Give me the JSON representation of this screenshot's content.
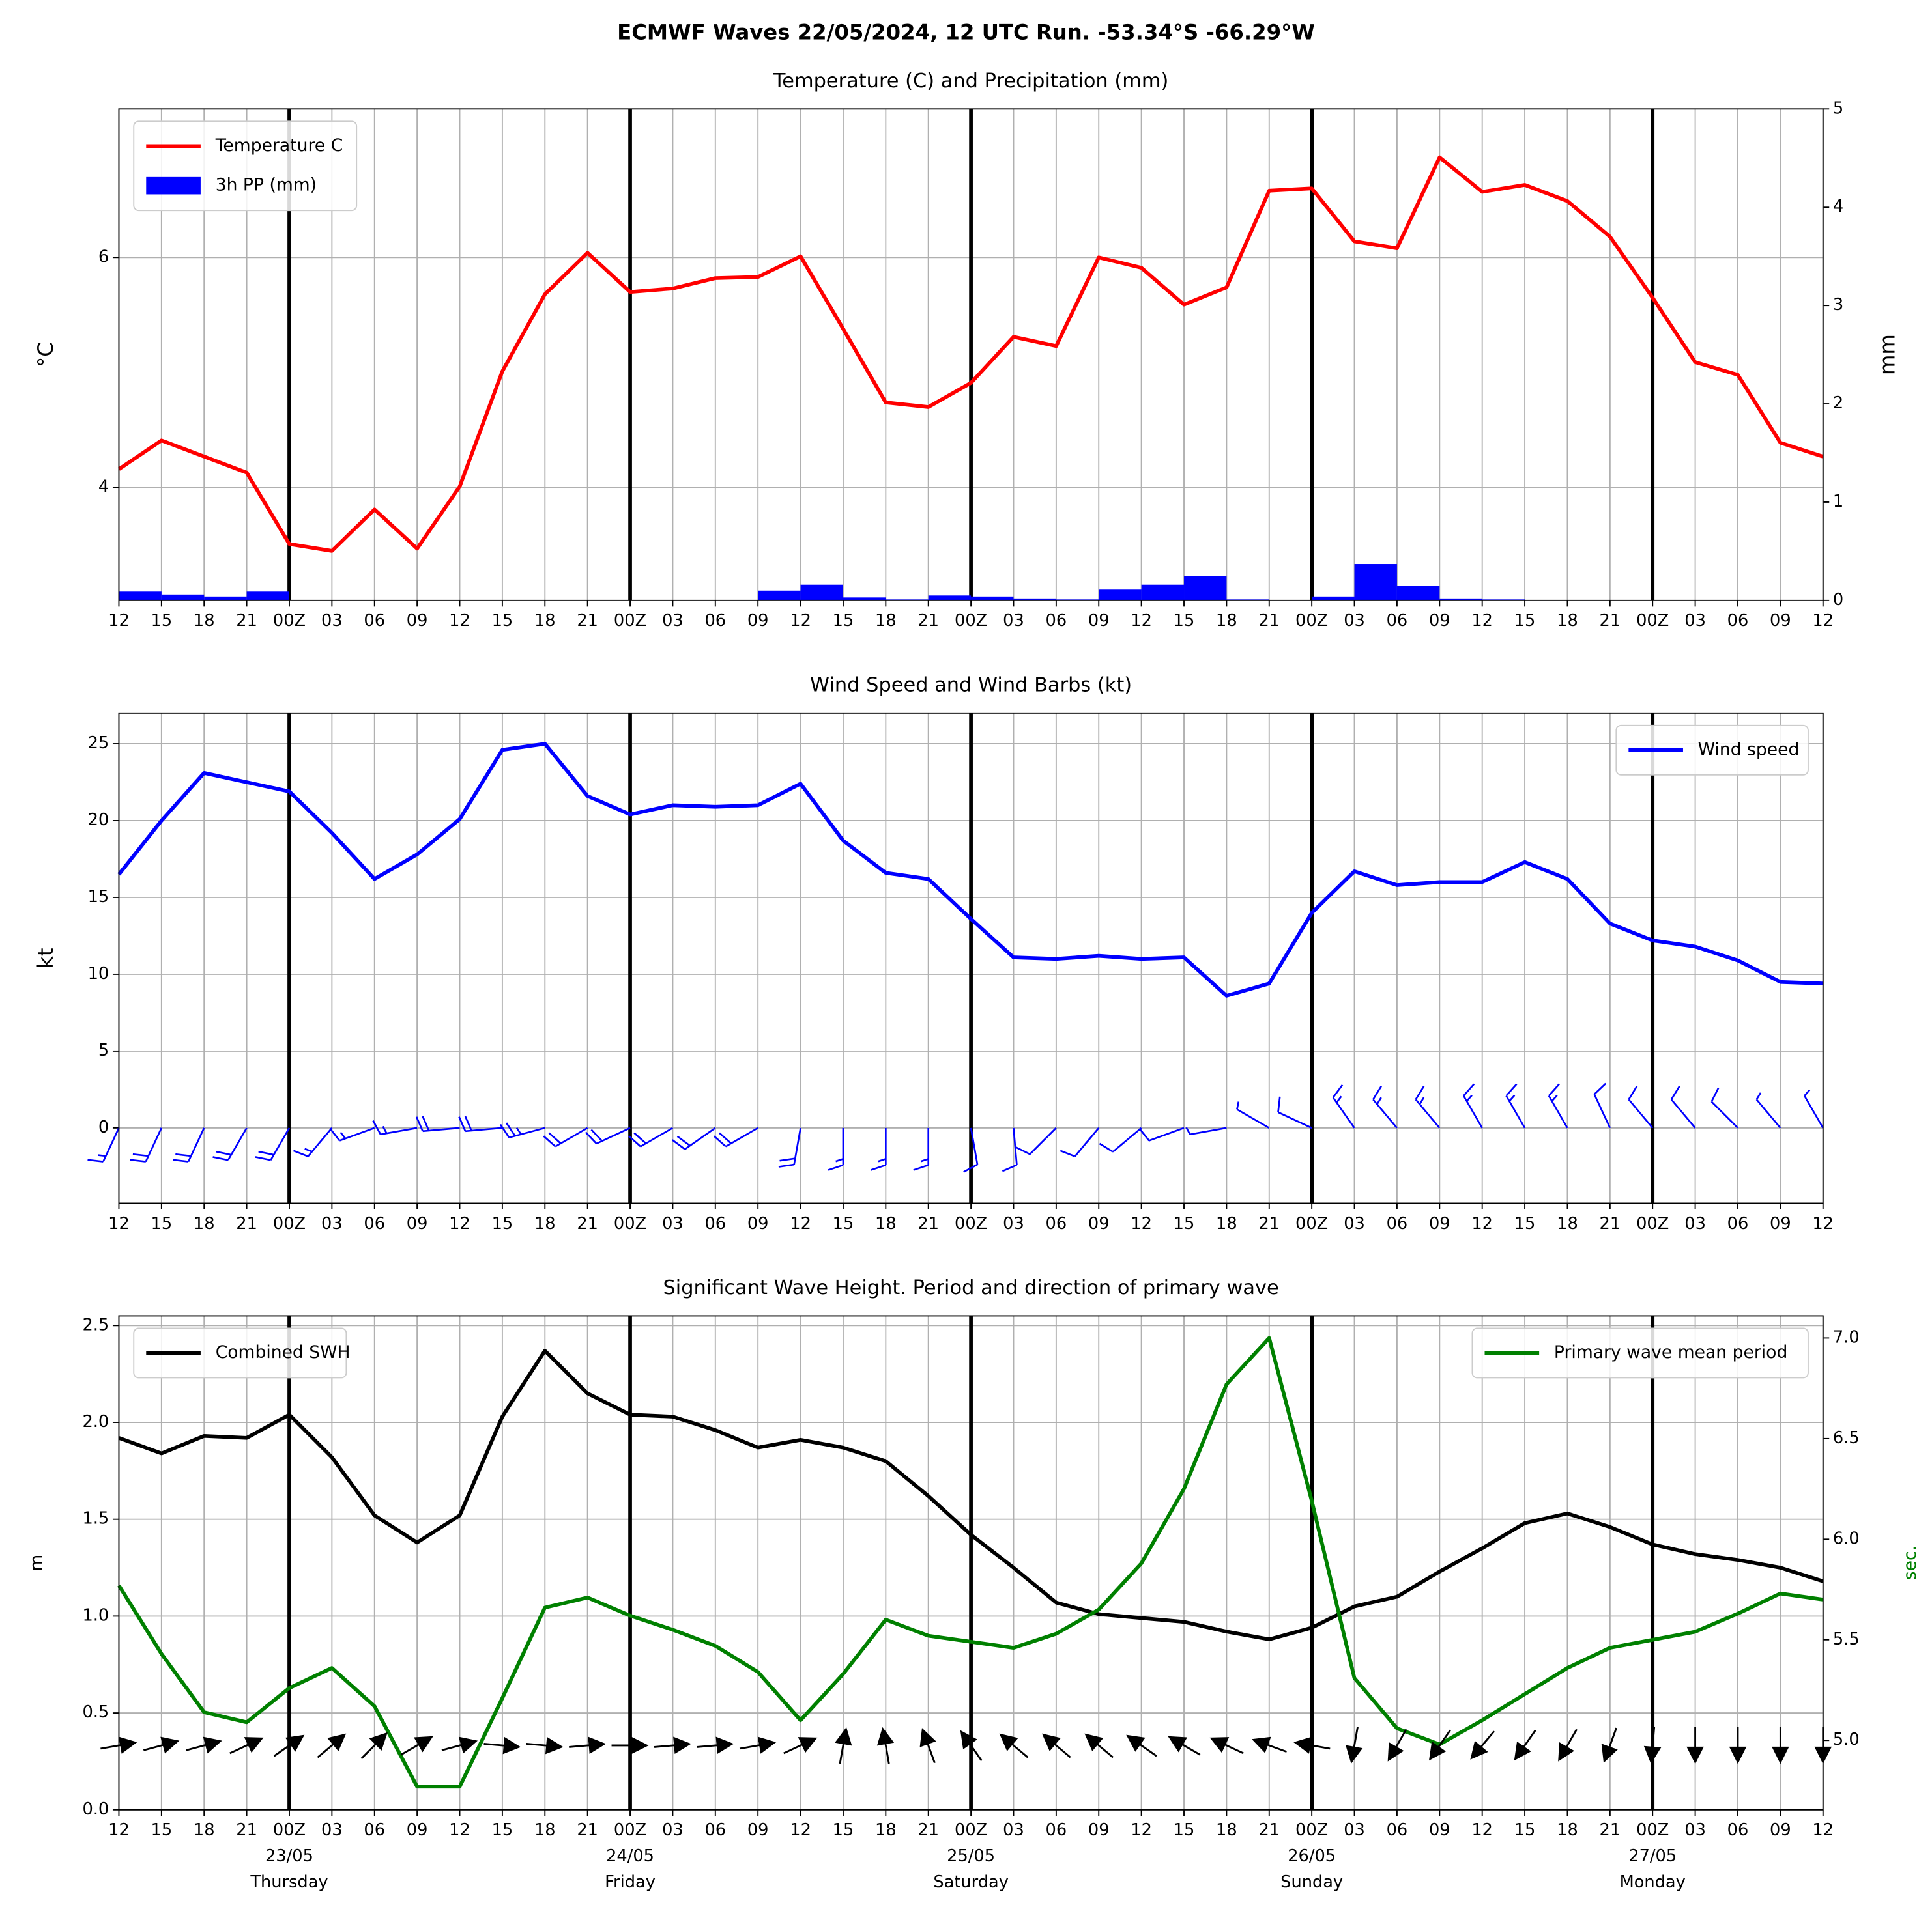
{
  "title": "ECMWF Waves 22/05/2024, 12 UTC Run. -53.34°S -66.29°W",
  "chart_data": [
    {
      "type": "line",
      "title": "Temperature (C) and Precipitation (mm)",
      "ylabel": "°C",
      "y2label": "mm",
      "categories": [
        "12",
        "15",
        "18",
        "21",
        "00Z",
        "03",
        "06",
        "09",
        "12",
        "15",
        "18",
        "21",
        "00Z",
        "03",
        "06",
        "09",
        "12",
        "15",
        "18",
        "21",
        "00Z",
        "03",
        "06",
        "09",
        "12",
        "15",
        "18",
        "21",
        "00Z",
        "03",
        "06",
        "09",
        "12",
        "15",
        "18",
        "21",
        "00Z",
        "03",
        "06",
        "09",
        "12"
      ],
      "ylim": [
        3.02,
        7.29
      ],
      "yticks": [
        4,
        6
      ],
      "y2lim": [
        0,
        5
      ],
      "y2ticks": [
        0,
        1,
        2,
        3,
        4,
        5
      ],
      "grid": true,
      "series": [
        {
          "name": "Temperature C",
          "color": "#ff0000",
          "kind": "line",
          "legend": "upper left",
          "values": [
            4.16,
            4.41,
            4.27,
            4.13,
            3.51,
            3.45,
            3.81,
            3.47,
            4.01,
            5.01,
            5.68,
            6.04,
            5.7,
            5.73,
            5.82,
            5.83,
            6.01,
            5.38,
            4.74,
            4.7,
            4.91,
            5.31,
            5.23,
            6.0,
            5.91,
            5.59,
            5.74,
            6.58,
            6.6,
            6.14,
            6.08,
            6.87,
            6.57,
            6.63,
            6.49,
            6.18,
            5.65,
            5.09,
            4.98,
            4.39,
            4.27
          ]
        },
        {
          "name": "3h PP (mm)",
          "color": "#0000ff",
          "kind": "bar",
          "axis": "y2",
          "legend": "upper left",
          "values": [
            0.09,
            0.06,
            0.04,
            0.09,
            0,
            0,
            0,
            0,
            0,
            0,
            0,
            0,
            0,
            0,
            0,
            0.1,
            0.16,
            0.03,
            0.01,
            0.05,
            0.04,
            0.02,
            0.01,
            0.11,
            0.16,
            0.25,
            0.01,
            0,
            0.04,
            0.37,
            0.15,
            0.02,
            0.01,
            0,
            0,
            0,
            0,
            0,
            0,
            0,
            null
          ]
        }
      ]
    },
    {
      "type": "line",
      "title": "Wind Speed and Wind Barbs (kt)",
      "ylabel": "kt",
      "categories": [
        "12",
        "15",
        "18",
        "21",
        "00Z",
        "03",
        "06",
        "09",
        "12",
        "15",
        "18",
        "21",
        "00Z",
        "03",
        "06",
        "09",
        "12",
        "15",
        "18",
        "21",
        "00Z",
        "03",
        "06",
        "09",
        "12",
        "15",
        "18",
        "21",
        "00Z",
        "03",
        "06",
        "09",
        "12",
        "15",
        "18",
        "21",
        "00Z",
        "03",
        "06",
        "09",
        "12"
      ],
      "ylim": [
        -4.9,
        27
      ],
      "yticks": [
        0,
        5,
        10,
        15,
        20,
        25
      ],
      "grid": true,
      "series": [
        {
          "name": "Wind speed",
          "color": "#0000ff",
          "kind": "line",
          "legend": "upper right",
          "values": [
            16.5,
            20.0,
            23.1,
            22.5,
            21.9,
            19.2,
            16.2,
            17.8,
            20.1,
            24.6,
            25.0,
            21.6,
            20.4,
            21.0,
            20.9,
            21.0,
            22.4,
            18.7,
            16.6,
            16.2,
            13.6,
            11.1,
            11.0,
            11.2,
            11.0,
            11.1,
            8.6,
            9.4,
            14.0,
            16.7,
            15.8,
            16.0,
            16.0,
            17.3,
            16.2,
            13.3,
            12.2,
            11.8,
            10.9,
            9.5,
            9.4
          ]
        }
      ],
      "wind_direction": [
        205,
        205,
        205,
        210,
        210,
        220,
        250,
        260,
        265,
        265,
        255,
        240,
        245,
        240,
        235,
        240,
        190,
        180,
        180,
        180,
        170,
        175,
        225,
        220,
        230,
        250,
        260,
        300,
        295,
        325,
        320,
        320,
        330,
        330,
        330,
        335,
        320,
        320,
        315,
        320,
        330
      ]
    },
    {
      "type": "line",
      "title": "Significant Wave Height. Period and direction of primary wave",
      "ylabel": "m",
      "y2label": "sec.",
      "y2color": "#008000",
      "categories": [
        "12",
        "15",
        "18",
        "21",
        "00Z",
        "03",
        "06",
        "09",
        "12",
        "15",
        "18",
        "21",
        "00Z",
        "03",
        "06",
        "09",
        "12",
        "15",
        "18",
        "21",
        "00Z",
        "03",
        "06",
        "09",
        "12",
        "15",
        "18",
        "21",
        "00Z",
        "03",
        "06",
        "09",
        "12",
        "15",
        "18",
        "21",
        "00Z",
        "03",
        "06",
        "09",
        "12"
      ],
      "day_labels": [
        [
          "23/05",
          "Thursday"
        ],
        [
          "24/05",
          "Friday"
        ],
        [
          "25/05",
          "Saturday"
        ],
        [
          "26/05",
          "Sunday"
        ],
        [
          "27/05",
          "Monday"
        ]
      ],
      "ylim": [
        0,
        2.55
      ],
      "yticks": [
        {
          "value": 0,
          "label": "0.0"
        },
        0.5,
        {
          "value": 1,
          "label": "1.0"
        },
        1.5,
        {
          "value": 2,
          "label": "2.0"
        },
        2.5
      ],
      "y2lim": [
        4.655,
        7.11
      ],
      "y2ticks": [
        {
          "value": 5,
          "label": "5.0"
        },
        5.5,
        {
          "value": 6,
          "label": "6.0"
        },
        6.5,
        {
          "value": 7,
          "label": "7.0"
        }
      ],
      "grid": true,
      "series": [
        {
          "name": "Combined SWH",
          "color": "#000000",
          "kind": "line",
          "legend": "upper left",
          "values": [
            1.92,
            1.84,
            1.93,
            1.92,
            2.04,
            1.82,
            1.52,
            1.38,
            1.52,
            2.03,
            2.37,
            2.15,
            2.04,
            2.03,
            1.96,
            1.87,
            1.91,
            1.87,
            1.8,
            1.62,
            1.42,
            1.25,
            1.07,
            1.01,
            0.99,
            0.97,
            0.92,
            0.88,
            0.94,
            1.05,
            1.1,
            1.23,
            1.35,
            1.48,
            1.53,
            1.46,
            1.37,
            1.32,
            1.29,
            1.25,
            1.18
          ]
        },
        {
          "name": "Primary wave mean period",
          "color": "#008000",
          "kind": "line",
          "axis": "y2",
          "legend": "upper right",
          "values": [
            5.77,
            5.43,
            5.14,
            5.09,
            5.26,
            5.36,
            5.17,
            4.77,
            4.77,
            5.21,
            5.66,
            5.71,
            5.62,
            5.55,
            5.47,
            5.34,
            5.1,
            5.33,
            5.6,
            5.52,
            5.49,
            5.46,
            5.53,
            5.65,
            5.88,
            6.25,
            6.77,
            7.0,
            6.19,
            5.31,
            5.06,
            4.98,
            5.1,
            5.23,
            5.36,
            5.46,
            5.5,
            5.54,
            5.63,
            5.73,
            5.7
          ]
        }
      ],
      "wave_direction": [
        80,
        75,
        75,
        65,
        55,
        50,
        45,
        60,
        75,
        95,
        95,
        85,
        90,
        85,
        85,
        80,
        65,
        10,
        350,
        340,
        325,
        310,
        310,
        310,
        305,
        300,
        295,
        290,
        280,
        190,
        210,
        215,
        220,
        215,
        210,
        200,
        185,
        180,
        180,
        180,
        180
      ]
    }
  ]
}
